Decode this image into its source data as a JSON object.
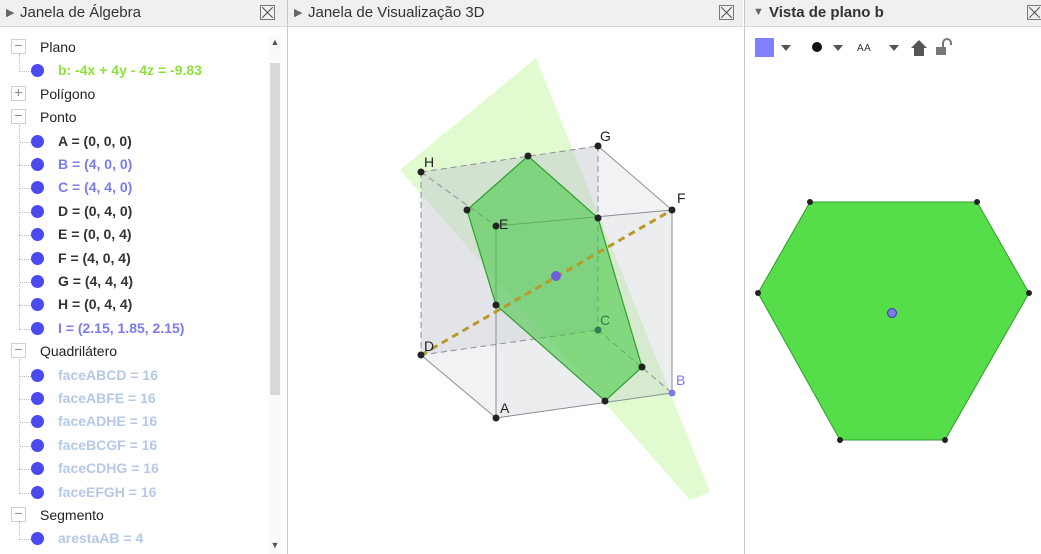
{
  "algebra": {
    "title": "Janela de Álgebra",
    "groups": [
      {
        "label": "Plano",
        "expanded": true,
        "items": [
          {
            "text": "b: -4x + 4y - 4z = -9.83",
            "color": "#8ee13d"
          }
        ]
      },
      {
        "label": "Polígono",
        "expanded": false,
        "items": []
      },
      {
        "label": "Ponto",
        "expanded": true,
        "items": [
          {
            "text": "A = (0, 0, 0)",
            "color": "#333333"
          },
          {
            "text": "B = (4, 0, 0)",
            "color": "#7b7bea"
          },
          {
            "text": "C = (4, 4, 0)",
            "color": "#7b7bea"
          },
          {
            "text": "D = (0, 4, 0)",
            "color": "#333333"
          },
          {
            "text": "E = (0, 0, 4)",
            "color": "#333333"
          },
          {
            "text": "F = (4, 0, 4)",
            "color": "#333333"
          },
          {
            "text": "G = (4, 4, 4)",
            "color": "#333333"
          },
          {
            "text": "H = (0, 4, 4)",
            "color": "#333333"
          },
          {
            "text": "I = (2.15, 1.85, 2.15)",
            "color": "#7b7bea"
          }
        ]
      },
      {
        "label": "Quadrilátero",
        "expanded": true,
        "items": [
          {
            "text": "faceABCD = 16",
            "color": "#b5c8e6"
          },
          {
            "text": "faceABFE = 16",
            "color": "#b5c8e6"
          },
          {
            "text": "faceADHE = 16",
            "color": "#b5c8e6"
          },
          {
            "text": "faceBCGF = 16",
            "color": "#b5c8e6"
          },
          {
            "text": "faceCDHG = 16",
            "color": "#b5c8e6"
          },
          {
            "text": "faceEFGH = 16",
            "color": "#b5c8e6"
          }
        ]
      },
      {
        "label": "Segmento",
        "expanded": true,
        "items": [
          {
            "text": "arestaAB = 4",
            "color": "#b5c8e6"
          }
        ]
      }
    ],
    "dot_color": "#4a4af0"
  },
  "view3d": {
    "title": "Janela de Visualização 3D",
    "labels": {
      "A": "A",
      "B": "B",
      "C": "C",
      "D": "D",
      "E": "E",
      "F": "F",
      "G": "G",
      "H": "H"
    }
  },
  "planeview": {
    "title": "Vista de plano b",
    "toolbar": [
      "color-swatch",
      "point-style",
      "label-style",
      "home",
      "lock"
    ]
  },
  "colors": {
    "plane": "#c9f5a8",
    "section": "#3dc63d",
    "line": "#b89a2a",
    "point_blue": "#7b7bea",
    "hexagon": "#55dd4a"
  }
}
